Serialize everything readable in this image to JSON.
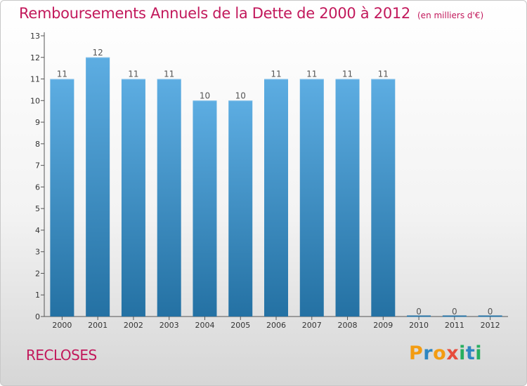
{
  "header": {
    "title": "Remboursements Annuels de la Dette de 2000 à 2012",
    "unit": "(en milliers d'€)"
  },
  "footer": {
    "commune": "RECLOSES",
    "brand": "Proxiti",
    "brand_letters": [
      "P",
      "r",
      "o",
      "x",
      "i",
      "t",
      "i"
    ],
    "brand_colors": [
      "#f39c12",
      "#2e86c1",
      "#f39c12",
      "#e74c3c",
      "#27ae60",
      "#2e86c1",
      "#27ae60"
    ]
  },
  "chart_data": {
    "type": "bar",
    "title": "Remboursements Annuels de la Dette de 2000 à 2012",
    "subtitle": "(en milliers d'€)",
    "xlabel": "",
    "ylabel": "",
    "categories": [
      "2000",
      "2001",
      "2002",
      "2003",
      "2004",
      "2005",
      "2006",
      "2007",
      "2008",
      "2009",
      "2010",
      "2011",
      "2012"
    ],
    "values": [
      11,
      12,
      11,
      11,
      10,
      10,
      11,
      11,
      11,
      11,
      0,
      0,
      0
    ],
    "value_labels": [
      "11",
      "12",
      "11",
      "11",
      "10",
      "10",
      "11",
      "11",
      "11",
      "11",
      "0",
      "0",
      "0"
    ],
    "ylim": [
      0,
      13
    ],
    "yticks": [
      "0",
      "1",
      "2",
      "3",
      "4",
      "5",
      "6",
      "7",
      "8",
      "9",
      "10",
      "11",
      "12",
      "13"
    ],
    "grid": false,
    "bar_color_top": "#5dade2",
    "bar_color_bottom": "#2471a3"
  }
}
